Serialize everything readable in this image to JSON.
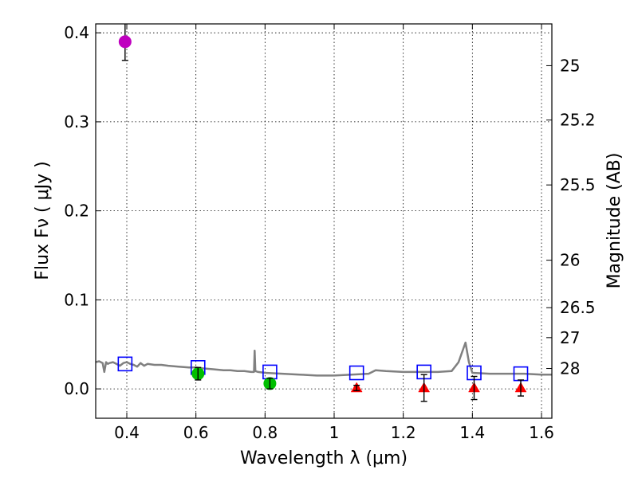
{
  "chart_data": {
    "type": "scatter",
    "title": "",
    "xlabel": "Wavelength  λ (μm)",
    "ylabel": "Flux  Fν  ( μJy )",
    "ylabel_right": "Magnitude (AB)",
    "xlim": [
      0.31,
      1.63
    ],
    "ylim": [
      -0.033,
      0.41
    ],
    "grid": true,
    "x_ticks": [
      "0.4",
      "0.6",
      "0.8",
      "1",
      "1.2",
      "1.4",
      "1.6"
    ],
    "y_ticks": [
      "0.0",
      "0.1",
      "0.2",
      "0.3",
      "0.4"
    ],
    "mag_ticks": [
      "25",
      "25.2",
      "25.5",
      "26",
      "26.5",
      "27",
      "28"
    ],
    "colors": {
      "detection_magenta": "#bf00bf",
      "detection_green": "#00bf00",
      "upper_limit": "#ff0000",
      "model_box": "#0000ff",
      "sed_line": "#808080",
      "errorbar": "#000000"
    },
    "series": [
      {
        "name": "SED model",
        "type": "line",
        "x": [
          0.31,
          0.32,
          0.33,
          0.335,
          0.34,
          0.345,
          0.35,
          0.36,
          0.37,
          0.38,
          0.39,
          0.4,
          0.41,
          0.42,
          0.43,
          0.44,
          0.45,
          0.46,
          0.48,
          0.5,
          0.52,
          0.55,
          0.58,
          0.6,
          0.62,
          0.65,
          0.68,
          0.7,
          0.72,
          0.74,
          0.76,
          0.768,
          0.77,
          0.772,
          0.78,
          0.8,
          0.85,
          0.9,
          0.95,
          1.0,
          1.05,
          1.1,
          1.12,
          1.15,
          1.2,
          1.25,
          1.3,
          1.34,
          1.36,
          1.38,
          1.39,
          1.4,
          1.45,
          1.5,
          1.55,
          1.6,
          1.63
        ],
        "y": [
          0.03,
          0.031,
          0.029,
          0.019,
          0.03,
          0.028,
          0.029,
          0.03,
          0.028,
          0.026,
          0.029,
          0.03,
          0.028,
          0.027,
          0.025,
          0.029,
          0.026,
          0.028,
          0.027,
          0.027,
          0.026,
          0.025,
          0.024,
          0.024,
          0.023,
          0.022,
          0.021,
          0.021,
          0.02,
          0.02,
          0.019,
          0.019,
          0.043,
          0.02,
          0.019,
          0.018,
          0.017,
          0.016,
          0.015,
          0.015,
          0.016,
          0.017,
          0.021,
          0.02,
          0.019,
          0.019,
          0.019,
          0.02,
          0.03,
          0.052,
          0.03,
          0.018,
          0.017,
          0.017,
          0.017,
          0.016,
          0.016
        ]
      },
      {
        "name": "Detection (magenta)",
        "type": "scatter",
        "points": [
          {
            "x": 0.395,
            "y": 0.39,
            "err": 0.021
          }
        ]
      },
      {
        "name": "Detections (green)",
        "type": "scatter",
        "points": [
          {
            "x": 0.606,
            "y": 0.017,
            "err": 0.007
          },
          {
            "x": 0.814,
            "y": 0.006,
            "err": 0.006
          }
        ]
      },
      {
        "name": "Upper limits",
        "type": "scatter",
        "points": [
          {
            "x": 1.065,
            "y": 0.001,
            "err": 0.003
          },
          {
            "x": 1.26,
            "y": 0.001,
            "err": 0.015
          },
          {
            "x": 1.405,
            "y": 0.001,
            "err": 0.013
          },
          {
            "x": 1.54,
            "y": 0.001,
            "err": 0.009
          }
        ]
      },
      {
        "name": "Model band fluxes",
        "type": "scatter",
        "points": [
          {
            "x": 0.395,
            "y": 0.028
          },
          {
            "x": 0.606,
            "y": 0.024
          },
          {
            "x": 0.814,
            "y": 0.019
          },
          {
            "x": 1.065,
            "y": 0.018
          },
          {
            "x": 1.26,
            "y": 0.019
          },
          {
            "x": 1.405,
            "y": 0.018
          },
          {
            "x": 1.54,
            "y": 0.017
          }
        ]
      }
    ]
  }
}
